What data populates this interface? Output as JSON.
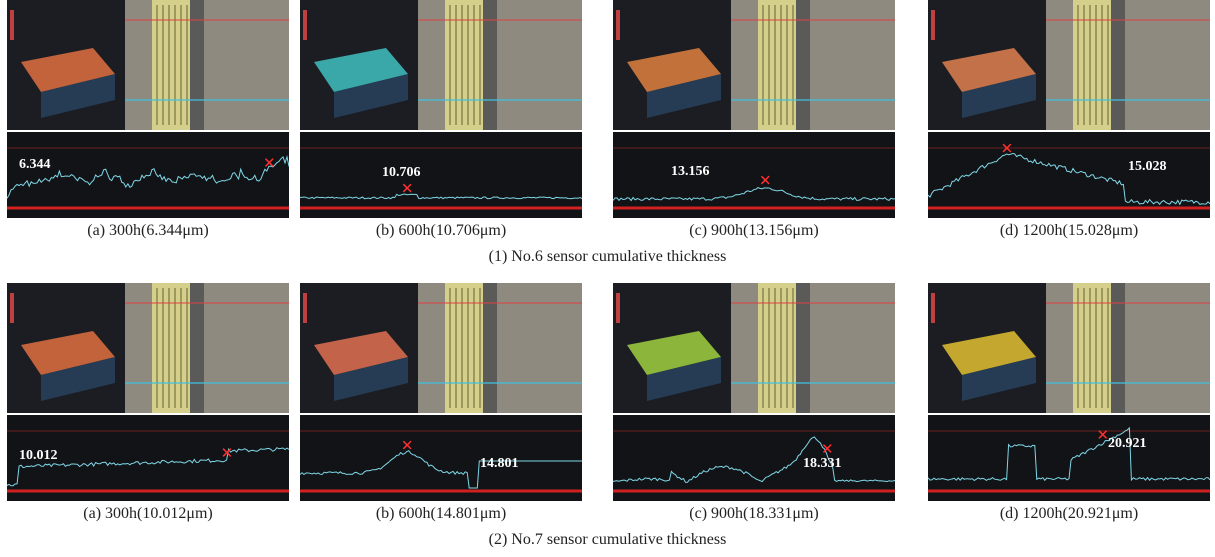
{
  "rows": [
    {
      "title": "(1) No.6 sensor cumulative thickness",
      "panels": [
        {
          "value": "6.344",
          "caption": "(a) 300h(6.344μm)"
        },
        {
          "value": "10.706",
          "caption": "(b) 600h(10.706μm)"
        },
        {
          "value": "13.156",
          "caption": "(c) 900h(13.156μm)"
        },
        {
          "value": "15.028",
          "caption": "(d) 1200h(15.028μm)"
        }
      ]
    },
    {
      "title": "(2) No.7 sensor cumulative thickness",
      "panels": [
        {
          "value": "10.012",
          "caption": "(a) 300h(10.012μm)"
        },
        {
          "value": "14.801",
          "caption": "(b) 600h(14.801μm)"
        },
        {
          "value": "18.331",
          "caption": "(c) 900h(18.331μm)"
        },
        {
          "value": "20.921",
          "caption": "(d) 1200h(20.921μm)"
        }
      ]
    }
  ]
}
